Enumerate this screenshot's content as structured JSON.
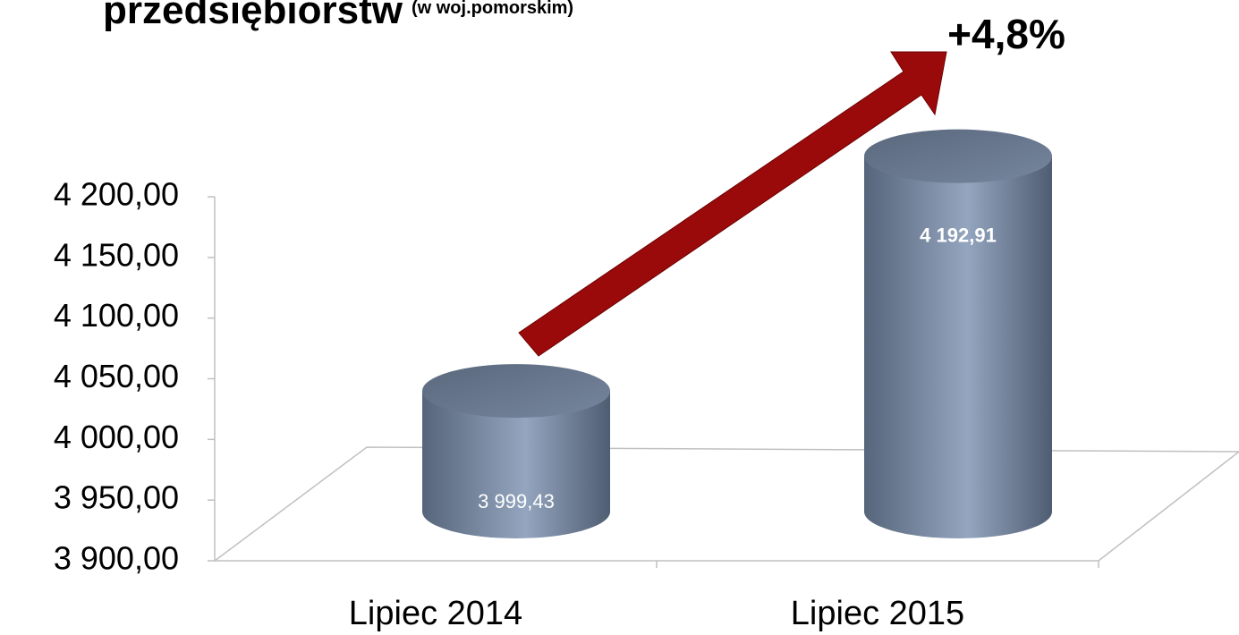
{
  "chart_data": {
    "type": "bar",
    "title": "przedsiębiorstw",
    "subtitle": "(w woj.pomorskim)",
    "annotation": "+4,8%",
    "categories": [
      "Lipiec 2014",
      "Lipiec 2015"
    ],
    "values": [
      3999.43,
      4192.91
    ],
    "value_labels": [
      "3 999,43",
      "4 192,91"
    ],
    "color": "#8a9bb5",
    "ylim": [
      3900,
      4200
    ],
    "yticks": [
      {
        "value": 3900,
        "label": "3 900,00"
      },
      {
        "value": 3950,
        "label": "3 950,00"
      },
      {
        "value": 4000,
        "label": "4 000,00"
      },
      {
        "value": 4050,
        "label": "4 050,00"
      },
      {
        "value": 4100,
        "label": "4 100,00"
      },
      {
        "value": 4150,
        "label": "4 150,00"
      },
      {
        "value": 4200,
        "label": "4 200,00"
      }
    ]
  }
}
